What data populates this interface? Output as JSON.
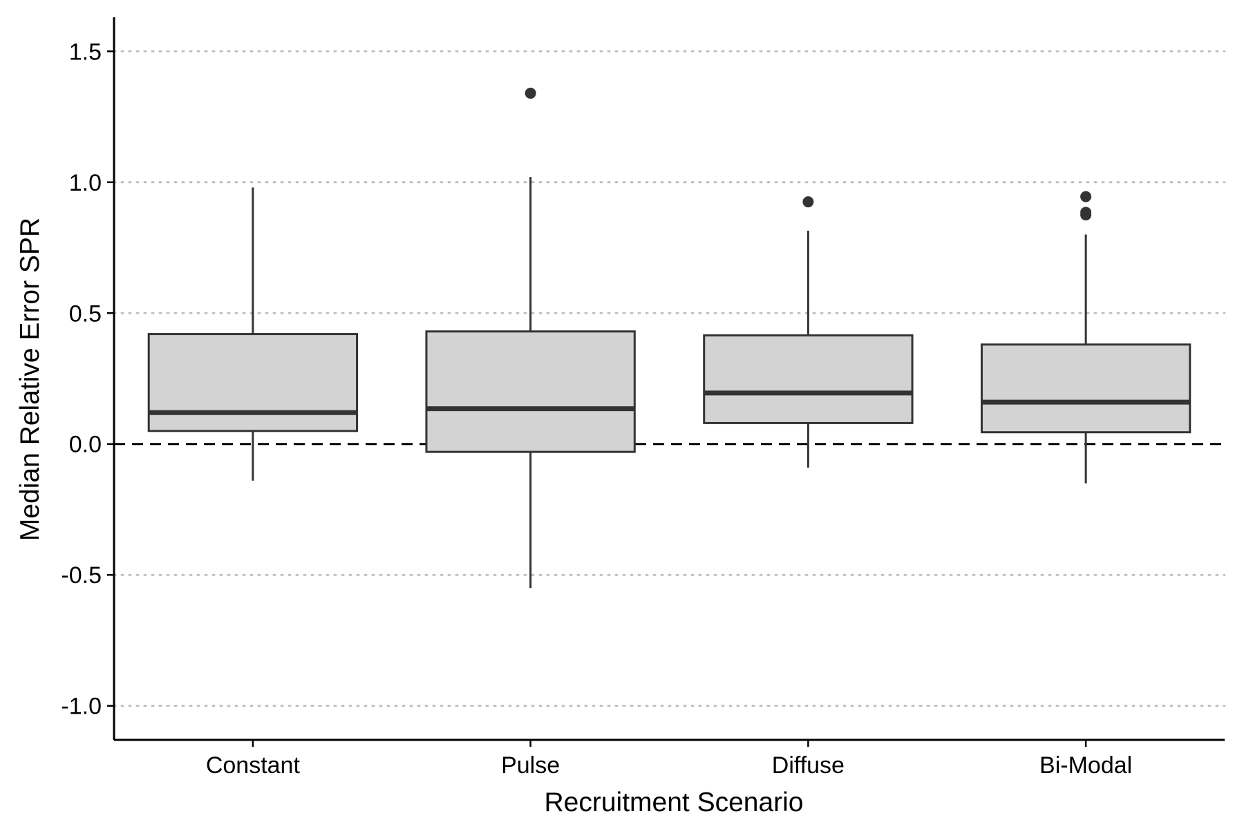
{
  "chart_data": {
    "type": "box",
    "xlabel": "Recruitment Scenario",
    "ylabel": "Median Relative Error SPR",
    "ylim": [
      -1.13,
      1.63
    ],
    "yticks": [
      1.5,
      1.0,
      0.5,
      0.0,
      -0.5,
      -1.0
    ],
    "ytick_labels": [
      "1.5",
      "1.0",
      "0.5",
      "0.0",
      "-0.5",
      "-1.0"
    ],
    "grid": "horizontal-dotted",
    "reference_line": {
      "y": 0.0,
      "style": "dashed"
    },
    "categories": [
      "Constant",
      "Pulse",
      "Diffuse",
      "Bi-Modal"
    ],
    "boxes": [
      {
        "category": "Constant",
        "whisker_low": -0.14,
        "q1": 0.05,
        "median": 0.12,
        "q3": 0.42,
        "whisker_high": 0.98,
        "outliers": []
      },
      {
        "category": "Pulse",
        "whisker_low": -0.55,
        "q1": -0.03,
        "median": 0.135,
        "q3": 0.43,
        "whisker_high": 1.02,
        "outliers": [
          1.34
        ]
      },
      {
        "category": "Diffuse",
        "whisker_low": -0.09,
        "q1": 0.08,
        "median": 0.195,
        "q3": 0.415,
        "whisker_high": 0.815,
        "outliers": [
          0.925
        ]
      },
      {
        "category": "Bi-Modal",
        "whisker_low": -0.15,
        "q1": 0.045,
        "median": 0.16,
        "q3": 0.38,
        "whisker_high": 0.8,
        "outliers": [
          0.945,
          0.885,
          0.875
        ]
      }
    ],
    "colors": {
      "box_fill": "#d3d3d3",
      "stroke": "#333333",
      "grid": "#bfbfbf",
      "axis": "#000000"
    }
  }
}
